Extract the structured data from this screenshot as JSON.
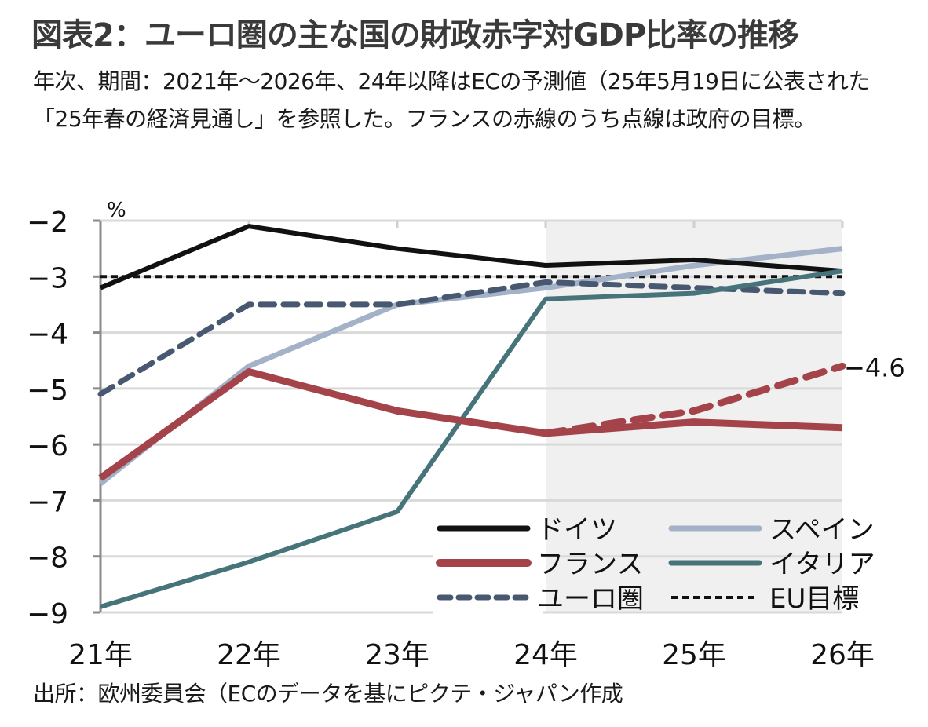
{
  "header": {
    "title": "図表2：ユーロ圏の主な国の財政赤字対GDP比率の推移",
    "subtitle": "年次、期間：2021年～2026年、24年以降はECの予測値（25年5月19日に公表された「25年春の経済見通し」を参照した。フランスの赤線のうち点線は政府の目標。"
  },
  "footer": {
    "source": "出所：欧州委員会（ECのデータを基にピクテ・ジャパン作成"
  },
  "chart_data": {
    "type": "line",
    "title": "ユーロ圏の主な国の財政赤字対GDP比率の推移",
    "xlabel": "",
    "ylabel": "%",
    "categories": [
      "21年",
      "22年",
      "23年",
      "24年",
      "25年",
      "26年"
    ],
    "ylim": [
      -9,
      -2
    ],
    "yticks": [
      -2,
      -3,
      -4,
      -5,
      -6,
      -7,
      -8,
      -9
    ],
    "ytick_labels": [
      "−2",
      "−3",
      "−4",
      "−5",
      "−6",
      "−7",
      "−8",
      "−9"
    ],
    "grid": true,
    "forecast_shading": {
      "from": "24年",
      "to": "26年",
      "color": "#f0f0f0"
    },
    "series": [
      {
        "name": "ドイツ",
        "color": "#111111",
        "style": "solid",
        "width": 6,
        "values": [
          -3.2,
          -2.1,
          -2.5,
          -2.8,
          -2.7,
          -2.9
        ]
      },
      {
        "name": "スペイン",
        "color": "#a3b2c7",
        "style": "solid",
        "width": 7,
        "values": [
          -6.7,
          -4.6,
          -3.5,
          -3.2,
          -2.8,
          -2.5
        ]
      },
      {
        "name": "フランス",
        "color": "#a4444a",
        "style": "solid",
        "width": 9,
        "values": [
          -6.6,
          -4.7,
          -5.4,
          -5.8,
          -5.6,
          -5.7
        ]
      },
      {
        "name": "フランス政府目標",
        "color": "#a4444a",
        "style": "dashed",
        "width": 9,
        "legend": false,
        "values": [
          null,
          null,
          null,
          -5.8,
          -5.4,
          -4.6
        ]
      },
      {
        "name": "イタリア",
        "color": "#47737a",
        "style": "solid",
        "width": 6,
        "values": [
          -8.9,
          -8.1,
          -7.2,
          -3.4,
          -3.3,
          -2.9
        ]
      },
      {
        "name": "ユーロ圏",
        "color": "#475870",
        "style": "dashed",
        "width": 7,
        "values": [
          -5.1,
          -3.5,
          -3.5,
          -3.1,
          -3.2,
          -3.3
        ]
      },
      {
        "name": "EU目標",
        "color": "#111111",
        "style": "dotted",
        "width": 4,
        "values": [
          -3,
          -3,
          -3,
          -3,
          -3,
          -3
        ]
      }
    ],
    "annotations": [
      {
        "text": "−4.6",
        "series": "フランス政府目標",
        "category": "26年",
        "value": -4.6
      }
    ],
    "legend": {
      "position": "bottom-right",
      "items": [
        {
          "label": "ドイツ",
          "color": "#111111",
          "style": "solid"
        },
        {
          "label": "スペイン",
          "color": "#a3b2c7",
          "style": "solid"
        },
        {
          "label": "フランス",
          "color": "#a4444a",
          "style": "solid"
        },
        {
          "label": "イタリア",
          "color": "#47737a",
          "style": "solid"
        },
        {
          "label": "ユーロ圏",
          "color": "#475870",
          "style": "dashed"
        },
        {
          "label": "EU目標",
          "color": "#111111",
          "style": "dotted"
        }
      ]
    }
  }
}
